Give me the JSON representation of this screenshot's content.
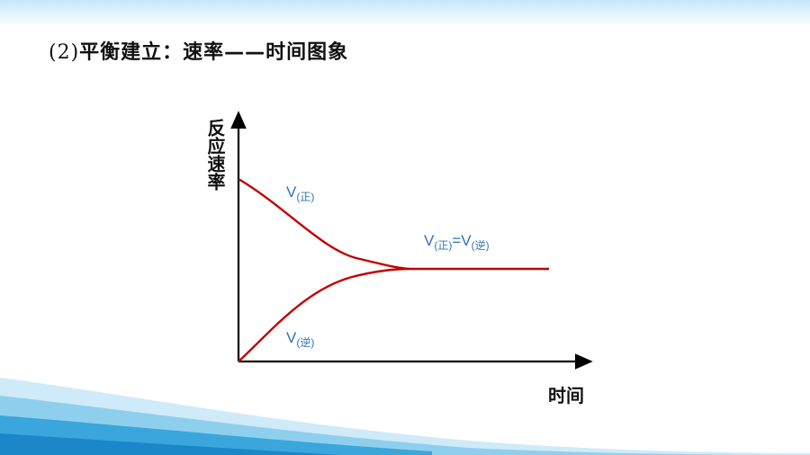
{
  "title": {
    "number": "(2)",
    "text": "平衡建立：速率——时间图象"
  },
  "diagram": {
    "y_axis_label": "反应速率",
    "x_axis_label": "时间",
    "curves": [
      {
        "name_main": "V",
        "name_sub": "(正)"
      },
      {
        "name_main": "V",
        "name_sub": "(逆)"
      }
    ],
    "equilibrium_label": {
      "left_main": "V",
      "left_sub": "(正)",
      "eq": "=",
      "right_main": "V",
      "right_sub": "(逆)"
    },
    "colors": {
      "curve": "#c00000",
      "axis": "#000000",
      "label": "#2e74b5"
    }
  }
}
